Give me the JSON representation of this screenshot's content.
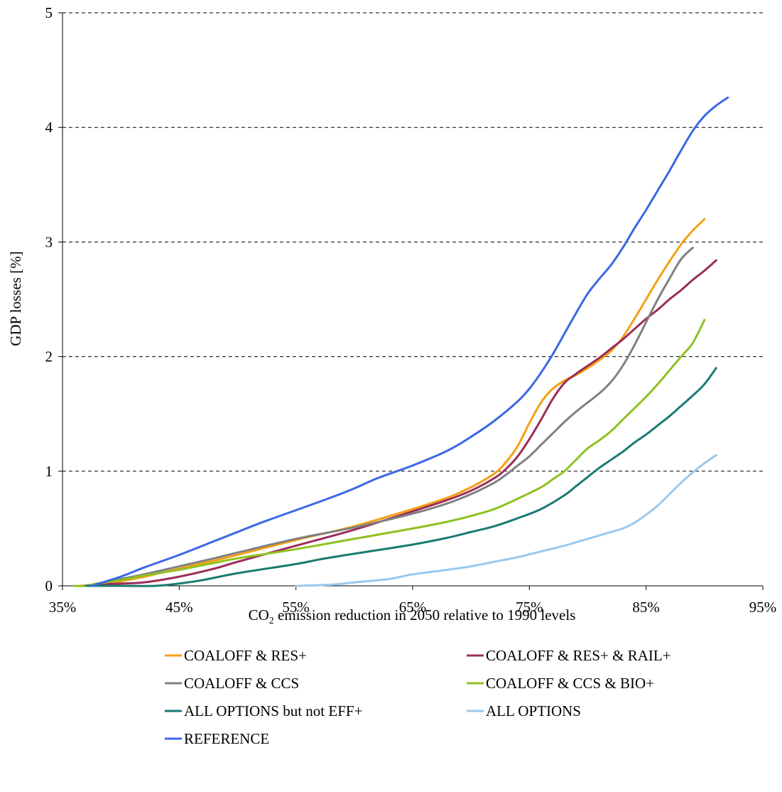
{
  "chart_data": {
    "type": "line",
    "title": "",
    "xlabel": {
      "prefix": "CO",
      "subscript": "2",
      "suffix": " emission reduction in 2050 relative to 1990 levels"
    },
    "ylabel": "GDP losses [%]",
    "xlim": [
      35,
      95
    ],
    "ylim": [
      0,
      5
    ],
    "x_ticks": [
      35,
      45,
      55,
      65,
      75,
      85,
      95
    ],
    "x_tick_labels": [
      "35%",
      "45%",
      "55%",
      "65%",
      "75%",
      "85%",
      "95%"
    ],
    "y_ticks": [
      0,
      1,
      2,
      3,
      4,
      5
    ],
    "y_tick_labels": [
      "0",
      "1",
      "2",
      "3",
      "4",
      "5"
    ],
    "grid": "horizontal dashed",
    "legend_position": "bottom",
    "series": [
      {
        "name": "COALOFF & RES+",
        "color": "#f5a011",
        "points": [
          [
            36.5,
            0.0
          ],
          [
            38,
            0.01
          ],
          [
            40,
            0.04
          ],
          [
            42,
            0.08
          ],
          [
            45,
            0.15
          ],
          [
            48,
            0.22
          ],
          [
            50,
            0.27
          ],
          [
            55,
            0.4
          ],
          [
            60,
            0.52
          ],
          [
            65,
            0.67
          ],
          [
            68,
            0.77
          ],
          [
            70,
            0.86
          ],
          [
            72,
            0.98
          ],
          [
            73,
            1.08
          ],
          [
            74,
            1.22
          ],
          [
            75,
            1.42
          ],
          [
            76,
            1.6
          ],
          [
            77,
            1.72
          ],
          [
            78,
            1.79
          ],
          [
            79,
            1.84
          ],
          [
            80,
            1.9
          ],
          [
            81,
            1.97
          ],
          [
            82,
            2.05
          ],
          [
            83,
            2.17
          ],
          [
            84,
            2.33
          ],
          [
            85,
            2.5
          ],
          [
            86,
            2.67
          ],
          [
            87,
            2.83
          ],
          [
            88,
            2.98
          ],
          [
            89,
            3.1
          ],
          [
            90,
            3.2
          ]
        ]
      },
      {
        "name": "COALOFF & RES+ & RAIL+",
        "color": "#9b2d5a",
        "points": [
          [
            37,
            0.0
          ],
          [
            38,
            0.01
          ],
          [
            40,
            0.02
          ],
          [
            42,
            0.03
          ],
          [
            45,
            0.08
          ],
          [
            48,
            0.15
          ],
          [
            50,
            0.21
          ],
          [
            55,
            0.35
          ],
          [
            60,
            0.49
          ],
          [
            65,
            0.65
          ],
          [
            68,
            0.75
          ],
          [
            70,
            0.83
          ],
          [
            72,
            0.94
          ],
          [
            73,
            1.02
          ],
          [
            74,
            1.13
          ],
          [
            75,
            1.28
          ],
          [
            76,
            1.45
          ],
          [
            77,
            1.63
          ],
          [
            78,
            1.77
          ],
          [
            79,
            1.85
          ],
          [
            80,
            1.92
          ],
          [
            81,
            1.99
          ],
          [
            82,
            2.07
          ],
          [
            83,
            2.15
          ],
          [
            84,
            2.24
          ],
          [
            85,
            2.33
          ],
          [
            86,
            2.41
          ],
          [
            87,
            2.5
          ],
          [
            88,
            2.58
          ],
          [
            89,
            2.67
          ],
          [
            90,
            2.75
          ],
          [
            91,
            2.84
          ]
        ]
      },
      {
        "name": "COALOFF & CCS",
        "color": "#808080",
        "points": [
          [
            37,
            0.0
          ],
          [
            38,
            0.02
          ],
          [
            40,
            0.06
          ],
          [
            42,
            0.1
          ],
          [
            45,
            0.17
          ],
          [
            48,
            0.24
          ],
          [
            50,
            0.29
          ],
          [
            55,
            0.41
          ],
          [
            60,
            0.51
          ],
          [
            65,
            0.63
          ],
          [
            68,
            0.72
          ],
          [
            70,
            0.8
          ],
          [
            72,
            0.9
          ],
          [
            73,
            0.97
          ],
          [
            74,
            1.05
          ],
          [
            75,
            1.13
          ],
          [
            76,
            1.23
          ],
          [
            77,
            1.33
          ],
          [
            78,
            1.43
          ],
          [
            79,
            1.52
          ],
          [
            80,
            1.6
          ],
          [
            81,
            1.68
          ],
          [
            82,
            1.78
          ],
          [
            83,
            1.92
          ],
          [
            84,
            2.1
          ],
          [
            85,
            2.3
          ],
          [
            86,
            2.5
          ],
          [
            87,
            2.68
          ],
          [
            88,
            2.85
          ],
          [
            89,
            2.95
          ]
        ]
      },
      {
        "name": "COALOFF & CCS & BIO+",
        "color": "#8dc21f",
        "points": [
          [
            36,
            0.0
          ],
          [
            37,
            0.0
          ],
          [
            38,
            0.02
          ],
          [
            40,
            0.05
          ],
          [
            42,
            0.09
          ],
          [
            45,
            0.14
          ],
          [
            48,
            0.2
          ],
          [
            50,
            0.24
          ],
          [
            55,
            0.32
          ],
          [
            60,
            0.41
          ],
          [
            65,
            0.5
          ],
          [
            68,
            0.56
          ],
          [
            70,
            0.61
          ],
          [
            72,
            0.67
          ],
          [
            74,
            0.76
          ],
          [
            76,
            0.86
          ],
          [
            77,
            0.93
          ],
          [
            78,
            1.0
          ],
          [
            79,
            1.1
          ],
          [
            80,
            1.2
          ],
          [
            81,
            1.27
          ],
          [
            82,
            1.35
          ],
          [
            83,
            1.45
          ],
          [
            84,
            1.55
          ],
          [
            85,
            1.65
          ],
          [
            86,
            1.76
          ],
          [
            87,
            1.88
          ],
          [
            88,
            2.0
          ],
          [
            89,
            2.12
          ],
          [
            90,
            2.32
          ]
        ]
      },
      {
        "name": "ALL OPTIONS but not EFF+",
        "color": "#1a7a73",
        "points": [
          [
            37,
            0.0
          ],
          [
            40,
            0.0
          ],
          [
            43,
            0.0
          ],
          [
            45,
            0.02
          ],
          [
            47,
            0.05
          ],
          [
            50,
            0.11
          ],
          [
            55,
            0.19
          ],
          [
            57,
            0.23
          ],
          [
            60,
            0.28
          ],
          [
            65,
            0.36
          ],
          [
            68,
            0.42
          ],
          [
            70,
            0.47
          ],
          [
            72,
            0.52
          ],
          [
            74,
            0.59
          ],
          [
            76,
            0.67
          ],
          [
            78,
            0.79
          ],
          [
            79,
            0.87
          ],
          [
            80,
            0.95
          ],
          [
            81,
            1.03
          ],
          [
            82,
            1.1
          ],
          [
            83,
            1.17
          ],
          [
            84,
            1.25
          ],
          [
            85,
            1.32
          ],
          [
            86,
            1.4
          ],
          [
            87,
            1.48
          ],
          [
            88,
            1.57
          ],
          [
            89,
            1.66
          ],
          [
            90,
            1.76
          ],
          [
            91,
            1.9
          ]
        ]
      },
      {
        "name": "ALL OPTIONS",
        "color": "#99c9ef",
        "points": [
          [
            55,
            0.0
          ],
          [
            58,
            0.01
          ],
          [
            60,
            0.03
          ],
          [
            63,
            0.06
          ],
          [
            65,
            0.1
          ],
          [
            68,
            0.14
          ],
          [
            70,
            0.17
          ],
          [
            72,
            0.21
          ],
          [
            74,
            0.25
          ],
          [
            76,
            0.3
          ],
          [
            78,
            0.35
          ],
          [
            80,
            0.41
          ],
          [
            82,
            0.47
          ],
          [
            83,
            0.5
          ],
          [
            84,
            0.55
          ],
          [
            85,
            0.62
          ],
          [
            86,
            0.7
          ],
          [
            87,
            0.8
          ],
          [
            88,
            0.9
          ],
          [
            89,
            0.99
          ],
          [
            90,
            1.07
          ],
          [
            91,
            1.14
          ]
        ]
      },
      {
        "name": "REFERENCE",
        "color": "#3a68e6",
        "points": [
          [
            37.5,
            0.0
          ],
          [
            40,
            0.08
          ],
          [
            42,
            0.16
          ],
          [
            45,
            0.27
          ],
          [
            48,
            0.39
          ],
          [
            50,
            0.47
          ],
          [
            52,
            0.55
          ],
          [
            55,
            0.66
          ],
          [
            58,
            0.77
          ],
          [
            60,
            0.85
          ],
          [
            62,
            0.94
          ],
          [
            65,
            1.05
          ],
          [
            68,
            1.18
          ],
          [
            70,
            1.3
          ],
          [
            72,
            1.44
          ],
          [
            74,
            1.61
          ],
          [
            75,
            1.72
          ],
          [
            76,
            1.86
          ],
          [
            77,
            2.02
          ],
          [
            78,
            2.2
          ],
          [
            79,
            2.38
          ],
          [
            80,
            2.55
          ],
          [
            81,
            2.68
          ],
          [
            82,
            2.8
          ],
          [
            83,
            2.95
          ],
          [
            84,
            3.12
          ],
          [
            85,
            3.28
          ],
          [
            86,
            3.45
          ],
          [
            87,
            3.62
          ],
          [
            88,
            3.8
          ],
          [
            89,
            3.97
          ],
          [
            90,
            4.1
          ],
          [
            91,
            4.19
          ],
          [
            92,
            4.26
          ]
        ]
      }
    ]
  }
}
